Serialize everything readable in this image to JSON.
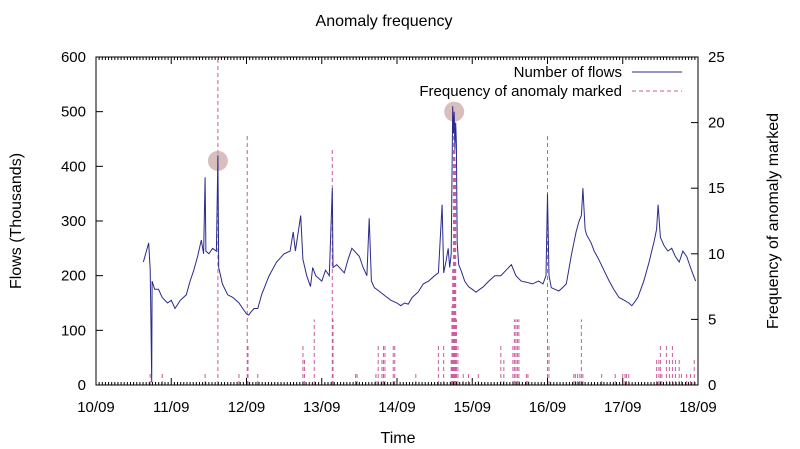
{
  "chart_data": {
    "type": "line",
    "title": "Anomaly frequency",
    "xlabel": "Time",
    "ylabel": "Flows (Thousands)",
    "y2label": "Frequency of anomaly marked",
    "x_unit": "days since 10/09 00:00",
    "xlim": [
      0,
      8
    ],
    "ylim": [
      0,
      600
    ],
    "y2lim": [
      0,
      25
    ],
    "x_ticks": [
      {
        "x": 0,
        "label": "10/09"
      },
      {
        "x": 1,
        "label": "11/09"
      },
      {
        "x": 2,
        "label": "12/09"
      },
      {
        "x": 3,
        "label": "13/09"
      },
      {
        "x": 4,
        "label": "14/09"
      },
      {
        "x": 5,
        "label": "15/09"
      },
      {
        "x": 6,
        "label": "16/09"
      },
      {
        "x": 7,
        "label": "17/09"
      },
      {
        "x": 8,
        "label": "18/09"
      }
    ],
    "y_ticks": [
      0,
      100,
      200,
      300,
      400,
      500,
      600
    ],
    "y_tick_labels": [
      "0",
      "100",
      "200",
      "300",
      "400",
      "500",
      "600"
    ],
    "y2_ticks": [
      0,
      5,
      10,
      15,
      20,
      25
    ],
    "y2_tick_labels": [
      "0",
      "5",
      "10",
      "15",
      "20",
      "25"
    ],
    "legend_position": "top-right",
    "series": [
      {
        "name": "Number of flows",
        "axis": "left",
        "style": "solid",
        "color": "#2b2a8c",
        "points": [
          [
            0.63,
            225
          ],
          [
            0.67,
            245
          ],
          [
            0.7,
            260
          ],
          [
            0.72,
            210
          ],
          [
            0.73,
            120
          ],
          [
            0.74,
            5
          ],
          [
            0.745,
            190
          ],
          [
            0.78,
            175
          ],
          [
            0.83,
            175
          ],
          [
            0.88,
            160
          ],
          [
            0.95,
            150
          ],
          [
            1.0,
            155
          ],
          [
            1.05,
            140
          ],
          [
            1.12,
            155
          ],
          [
            1.2,
            165
          ],
          [
            1.25,
            190
          ],
          [
            1.3,
            210
          ],
          [
            1.35,
            235
          ],
          [
            1.4,
            265
          ],
          [
            1.43,
            240
          ],
          [
            1.45,
            380
          ],
          [
            1.46,
            245
          ],
          [
            1.5,
            240
          ],
          [
            1.55,
            250
          ],
          [
            1.6,
            245
          ],
          [
            1.62,
            420
          ],
          [
            1.63,
            215
          ],
          [
            1.68,
            185
          ],
          [
            1.75,
            165
          ],
          [
            1.82,
            160
          ],
          [
            1.9,
            150
          ],
          [
            1.95,
            140
          ],
          [
            2.0,
            130
          ],
          [
            2.03,
            128
          ],
          [
            2.05,
            132
          ],
          [
            2.1,
            140
          ],
          [
            2.15,
            140
          ],
          [
            2.2,
            165
          ],
          [
            2.3,
            200
          ],
          [
            2.4,
            225
          ],
          [
            2.5,
            240
          ],
          [
            2.58,
            245
          ],
          [
            2.62,
            280
          ],
          [
            2.65,
            245
          ],
          [
            2.72,
            310
          ],
          [
            2.75,
            230
          ],
          [
            2.8,
            200
          ],
          [
            2.85,
            180
          ],
          [
            2.88,
            215
          ],
          [
            2.92,
            200
          ],
          [
            3.0,
            190
          ],
          [
            3.05,
            210
          ],
          [
            3.1,
            200
          ],
          [
            3.14,
            360
          ],
          [
            3.15,
            215
          ],
          [
            3.2,
            220
          ],
          [
            3.3,
            205
          ],
          [
            3.35,
            230
          ],
          [
            3.4,
            250
          ],
          [
            3.5,
            235
          ],
          [
            3.55,
            215
          ],
          [
            3.6,
            200
          ],
          [
            3.63,
            305
          ],
          [
            3.66,
            190
          ],
          [
            3.7,
            178
          ],
          [
            3.78,
            170
          ],
          [
            3.85,
            162
          ],
          [
            3.92,
            155
          ],
          [
            4.0,
            150
          ],
          [
            4.05,
            145
          ],
          [
            4.1,
            150
          ],
          [
            4.15,
            148
          ],
          [
            4.2,
            160
          ],
          [
            4.28,
            170
          ],
          [
            4.35,
            185
          ],
          [
            4.42,
            190
          ],
          [
            4.5,
            200
          ],
          [
            4.55,
            205
          ],
          [
            4.6,
            330
          ],
          [
            4.62,
            205
          ],
          [
            4.65,
            225
          ],
          [
            4.68,
            250
          ],
          [
            4.7,
            215
          ],
          [
            4.72,
            240
          ],
          [
            4.74,
            510
          ],
          [
            4.75,
            460
          ],
          [
            4.76,
            500
          ],
          [
            4.77,
            430
          ],
          [
            4.78,
            480
          ],
          [
            4.79,
            440
          ],
          [
            4.8,
            260
          ],
          [
            4.82,
            220
          ],
          [
            4.85,
            210
          ],
          [
            4.9,
            190
          ],
          [
            4.95,
            180
          ],
          [
            5.0,
            175
          ],
          [
            5.05,
            170
          ],
          [
            5.1,
            175
          ],
          [
            5.15,
            180
          ],
          [
            5.22,
            190
          ],
          [
            5.3,
            200
          ],
          [
            5.38,
            200
          ],
          [
            5.45,
            210
          ],
          [
            5.52,
            220
          ],
          [
            5.58,
            200
          ],
          [
            5.65,
            190
          ],
          [
            5.72,
            188
          ],
          [
            5.8,
            185
          ],
          [
            5.88,
            190
          ],
          [
            5.94,
            185
          ],
          [
            5.98,
            200
          ],
          [
            6.0,
            350
          ],
          [
            6.02,
            200
          ],
          [
            6.05,
            178
          ],
          [
            6.1,
            175
          ],
          [
            6.15,
            172
          ],
          [
            6.2,
            178
          ],
          [
            6.25,
            185
          ],
          [
            6.32,
            240
          ],
          [
            6.38,
            280
          ],
          [
            6.42,
            300
          ],
          [
            6.45,
            310
          ],
          [
            6.47,
            360
          ],
          [
            6.5,
            285
          ],
          [
            6.52,
            275
          ],
          [
            6.58,
            260
          ],
          [
            6.62,
            245
          ],
          [
            6.68,
            230
          ],
          [
            6.75,
            210
          ],
          [
            6.82,
            190
          ],
          [
            6.88,
            175
          ],
          [
            6.95,
            160
          ],
          [
            7.02,
            155
          ],
          [
            7.08,
            150
          ],
          [
            7.12,
            145
          ],
          [
            7.15,
            150
          ],
          [
            7.2,
            160
          ],
          [
            7.28,
            190
          ],
          [
            7.35,
            225
          ],
          [
            7.42,
            265
          ],
          [
            7.45,
            285
          ],
          [
            7.47,
            330
          ],
          [
            7.5,
            270
          ],
          [
            7.55,
            255
          ],
          [
            7.6,
            245
          ],
          [
            7.65,
            250
          ],
          [
            7.7,
            235
          ],
          [
            7.75,
            225
          ],
          [
            7.8,
            245
          ],
          [
            7.85,
            235
          ],
          [
            7.9,
            215
          ],
          [
            7.94,
            200
          ],
          [
            7.97,
            190
          ]
        ]
      },
      {
        "name": "Frequency of anomaly marked",
        "axis": "right",
        "style": "dashed",
        "color": "#cc5c9e",
        "impulses": [
          [
            0.72,
            1
          ],
          [
            0.88,
            1
          ],
          [
            1.45,
            1
          ],
          [
            1.62,
            25
          ],
          [
            1.9,
            1
          ],
          [
            2.01,
            19
          ],
          [
            2.02,
            3
          ],
          [
            2.15,
            1
          ],
          [
            2.75,
            3
          ],
          [
            2.77,
            2
          ],
          [
            2.9,
            5
          ],
          [
            3.14,
            18
          ],
          [
            3.15,
            5
          ],
          [
            3.45,
            1
          ],
          [
            3.47,
            1
          ],
          [
            3.72,
            1
          ],
          [
            3.75,
            3
          ],
          [
            3.8,
            2
          ],
          [
            3.82,
            3
          ],
          [
            3.84,
            3
          ],
          [
            3.95,
            3
          ],
          [
            3.97,
            3
          ],
          [
            4.25,
            1
          ],
          [
            4.55,
            3
          ],
          [
            4.62,
            3
          ],
          [
            4.72,
            2
          ],
          [
            4.73,
            6
          ],
          [
            4.74,
            9
          ],
          [
            4.75,
            20
          ],
          [
            4.76,
            18
          ],
          [
            4.77,
            20
          ],
          [
            4.78,
            17
          ],
          [
            4.79,
            5
          ],
          [
            4.81,
            3
          ],
          [
            4.88,
            1
          ],
          [
            4.95,
            1
          ],
          [
            5.08,
            1
          ],
          [
            5.38,
            3
          ],
          [
            5.42,
            2
          ],
          [
            5.54,
            3
          ],
          [
            5.56,
            5
          ],
          [
            5.58,
            5
          ],
          [
            5.6,
            5
          ],
          [
            5.62,
            5
          ],
          [
            5.72,
            1
          ],
          [
            5.74,
            1
          ],
          [
            6.0,
            19
          ],
          [
            6.02,
            3
          ],
          [
            6.35,
            1
          ],
          [
            6.37,
            1
          ],
          [
            6.4,
            1
          ],
          [
            6.43,
            1
          ],
          [
            6.45,
            5
          ],
          [
            6.47,
            1
          ],
          [
            6.72,
            1
          ],
          [
            6.9,
            1
          ],
          [
            7.0,
            1
          ],
          [
            7.03,
            1
          ],
          [
            7.05,
            1
          ],
          [
            7.08,
            1
          ],
          [
            7.45,
            2
          ],
          [
            7.48,
            2
          ],
          [
            7.5,
            3
          ],
          [
            7.52,
            1
          ],
          [
            7.58,
            3
          ],
          [
            7.62,
            2
          ],
          [
            7.66,
            3
          ],
          [
            7.7,
            2
          ],
          [
            7.75,
            2
          ],
          [
            7.78,
            1
          ],
          [
            7.85,
            1
          ],
          [
            7.9,
            1
          ],
          [
            7.95,
            2
          ]
        ]
      }
    ],
    "highlight_markers": [
      {
        "x": 1.62,
        "y": 410
      },
      {
        "x": 4.76,
        "y": 500
      }
    ]
  }
}
